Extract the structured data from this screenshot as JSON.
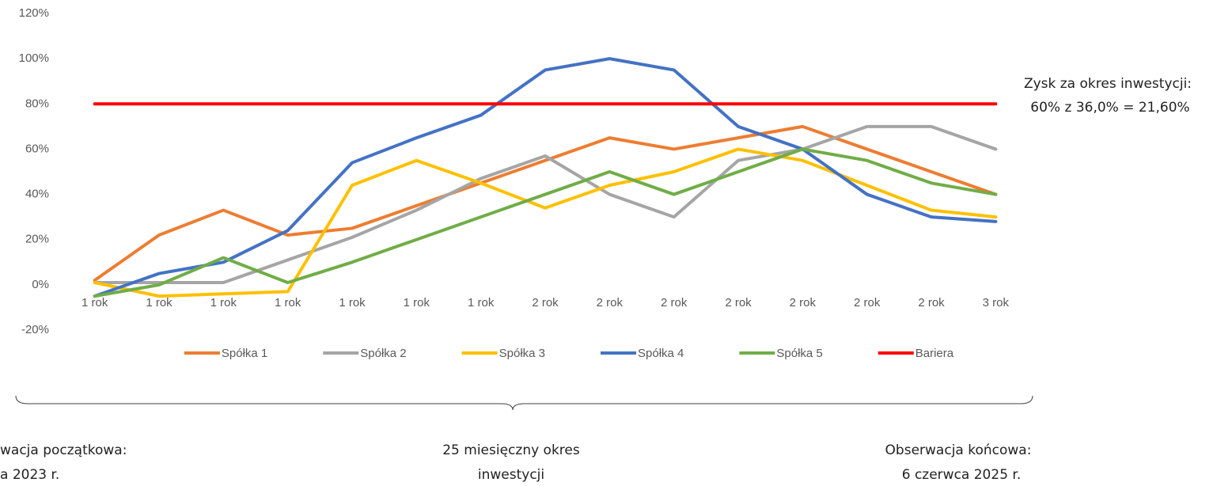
{
  "chart_data": {
    "type": "line",
    "categories": [
      "1 rok",
      "1 rok",
      "1 rok",
      "1 rok",
      "1 rok",
      "1 rok",
      "1 rok",
      "2 rok",
      "2 rok",
      "2 rok",
      "2 rok",
      "2 rok",
      "2 rok",
      "2 rok",
      "3 rok"
    ],
    "series": [
      {
        "name": "Spółka 1",
        "color": "#ED7D31",
        "values": [
          2,
          22,
          33,
          22,
          25,
          35,
          45,
          55,
          65,
          60,
          65,
          70,
          60,
          50,
          40
        ]
      },
      {
        "name": "Spółka 2",
        "color": "#A5A5A5",
        "values": [
          1,
          1,
          1,
          11,
          21,
          33,
          47,
          57,
          40,
          30,
          55,
          60,
          70,
          70,
          60
        ]
      },
      {
        "name": "Spółka 3",
        "color": "#FFC000",
        "values": [
          1,
          -5,
          -4,
          -3,
          44,
          55,
          45,
          34,
          44,
          50,
          60,
          55,
          44,
          33,
          30
        ]
      },
      {
        "name": "Spółka 4",
        "color": "#4472C4",
        "values": [
          -5,
          5,
          10,
          24,
          54,
          65,
          75,
          95,
          100,
          95,
          70,
          60,
          40,
          30,
          28
        ]
      },
      {
        "name": "Spółka 5",
        "color": "#70AD47",
        "values": [
          -5,
          0,
          12,
          1,
          10,
          20,
          30,
          40,
          50,
          40,
          50,
          60,
          55,
          45,
          40
        ]
      },
      {
        "name": "Bariera",
        "color": "#FF0000",
        "values": [
          80,
          80,
          80,
          80,
          80,
          80,
          80,
          80,
          80,
          80,
          80,
          80,
          80,
          80,
          80
        ]
      }
    ],
    "ylim": [
      -20,
      120
    ],
    "yticks": [
      {
        "value": -20,
        "label": "-20%"
      },
      {
        "value": 0,
        "label": "0%"
      },
      {
        "value": 20,
        "label": "20%"
      },
      {
        "value": 40,
        "label": "40%"
      },
      {
        "value": 60,
        "label": "60%"
      },
      {
        "value": 80,
        "label": "80%"
      },
      {
        "value": 100,
        "label": "100%"
      },
      {
        "value": 120,
        "label": "120%"
      }
    ],
    "grid": false,
    "legend": "bottom",
    "annotations": {
      "gain": [
        "Zysk za okres inwestycji:",
        "60% z 36,0% = 21,60%"
      ],
      "start": [
        "wacja początkowa:",
        "a 2023 r."
      ],
      "period": [
        "25 miesięczny okres",
        "inwestycji"
      ],
      "end": [
        "Obserwacja końcowa:",
        "6 czerwca 2025 r."
      ]
    }
  }
}
